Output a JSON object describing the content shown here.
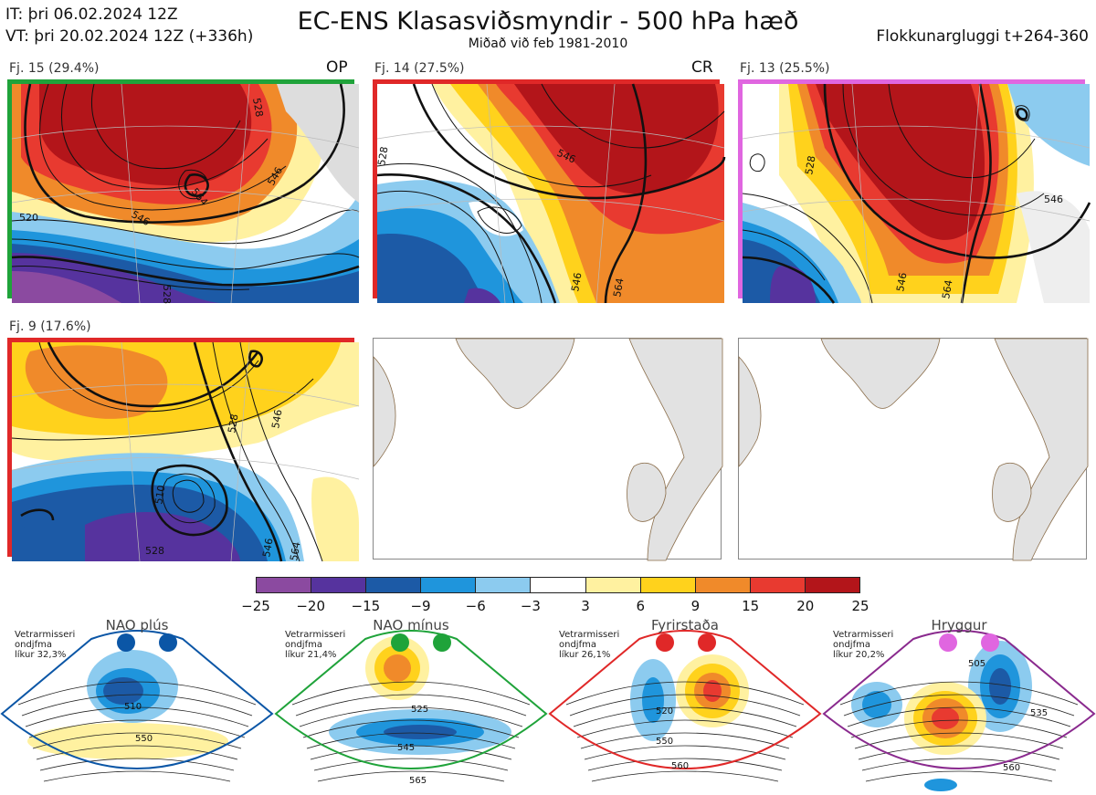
{
  "header": {
    "it_line": "IT: þri 06.02.2024 12Z",
    "vt_line": "VT: þri 20.02.2024 12Z  (+336h)",
    "title": "EC-ENS Klasasviðsmyndir - 500 hPa hæð",
    "subtitle": "Miðað við feb 1981-2010",
    "window": "Flokkunargluggi t+264-360"
  },
  "panels": [
    {
      "label": "Fj. 15 (29.4%)",
      "tag": "OP",
      "border": "#1fa33a",
      "contours": [
        "528",
        "546",
        "564",
        "520",
        "546",
        "528"
      ]
    },
    {
      "label": "Fj. 14 (27.5%)",
      "tag": "CR",
      "border": "#e02828",
      "contours": [
        "546",
        "528",
        "546",
        "564"
      ]
    },
    {
      "label": "Fj. 13 (25.5%)",
      "tag": "",
      "border": "#e066e0",
      "contours": [
        "528",
        "546",
        "546",
        "564"
      ]
    },
    {
      "label": "Fj. 9 (17.6%)",
      "tag": "",
      "border": "#e02828",
      "contours": [
        "546",
        "528",
        "546",
        "510",
        "528",
        "564"
      ]
    }
  ],
  "colorbar": {
    "colors": [
      "#8b4aa0",
      "#56339e",
      "#1c5aa6",
      "#1f95dc",
      "#8ccbef",
      "#ffffff",
      "#fff1a0",
      "#ffd21c",
      "#f08a2a",
      "#e83a30",
      "#b3151a"
    ],
    "ticks": [
      "−25",
      "−20",
      "−15",
      "−9",
      "−6",
      "−3",
      "3",
      "6",
      "9",
      "15",
      "20",
      "25"
    ]
  },
  "regimes": [
    {
      "name": "NAO plús",
      "note1": "Vetrarmisseri",
      "note2": "ondjfma",
      "note3": "líkur 32,3%",
      "color": "#0b56a6",
      "frame": "#0b56a6",
      "labels": [
        "510",
        "550"
      ]
    },
    {
      "name": "NAO mínus",
      "note1": "Vetrarmisseri",
      "note2": "ondjfma",
      "note3": "líkur 21,4%",
      "color": "#1fa33a",
      "frame": "#1fa33a",
      "labels": [
        "525",
        "545",
        "565"
      ]
    },
    {
      "name": "Fyrirstaða",
      "note1": "Vetrarmisseri",
      "note2": "ondjfma",
      "note3": "líkur 26,1%",
      "color": "#e02828",
      "frame": "#e02828",
      "labels": [
        "520",
        "550",
        "560"
      ]
    },
    {
      "name": "Hryggur",
      "note1": "Vetrarmisseri",
      "note2": "ondjfma",
      "note3": "líkur 20,2%",
      "color": "#e066e0",
      "frame": "#8a2a8e",
      "labels": [
        "505",
        "535",
        "560"
      ]
    }
  ]
}
